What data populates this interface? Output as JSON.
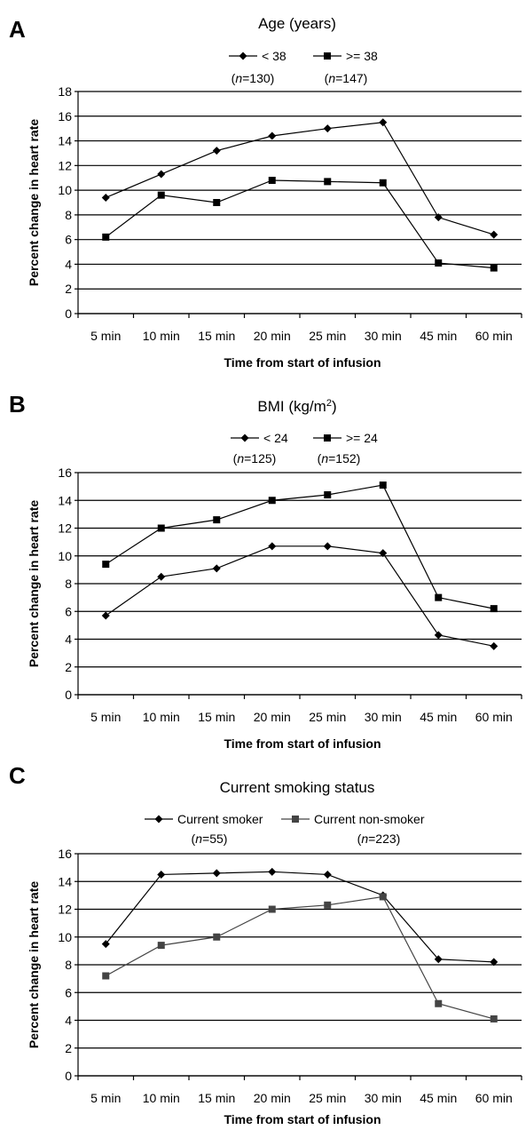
{
  "chart_data": [
    {
      "type": "line",
      "panel": "A",
      "title": "Age (years)",
      "title_sup": "",
      "title_end": "",
      "xlabel": "Time from start of infusion",
      "ylabel": "Percent change in heart rate",
      "categories": [
        "5 min",
        "10 min",
        "15 min",
        "20 min",
        "25 min",
        "30 min",
        "45 min",
        "60 min"
      ],
      "ylim": [
        0,
        18
      ],
      "yticks": [
        "0",
        "2",
        "4",
        "6",
        "8",
        "10",
        "12",
        "14",
        "16",
        "18"
      ],
      "grid": true,
      "legend_position": "top",
      "series": [
        {
          "name": "< 38",
          "n_prefix": "(",
          "n_sym": "n",
          "n_suffix": "=130)",
          "marker": "diamond",
          "color": "#000000",
          "values": [
            9.4,
            11.3,
            13.2,
            14.4,
            15.0,
            15.5,
            7.8,
            6.4
          ]
        },
        {
          "name": ">= 38",
          "n_prefix": "(",
          "n_sym": "n",
          "n_suffix": "=147)",
          "marker": "square",
          "color": "#000000",
          "values": [
            6.2,
            9.6,
            9.0,
            10.8,
            10.7,
            10.6,
            4.1,
            3.7
          ]
        }
      ]
    },
    {
      "type": "line",
      "panel": "B",
      "title": "BMI (kg/m",
      "title_sup": "2",
      "title_end": ")",
      "xlabel": "Time from start of infusion",
      "ylabel": "Percent change in heart rate",
      "categories": [
        "5 min",
        "10 min",
        "15 min",
        "20 min",
        "25 min",
        "30 min",
        "45 min",
        "60 min"
      ],
      "ylim": [
        0,
        16
      ],
      "yticks": [
        "0",
        "2",
        "4",
        "6",
        "8",
        "10",
        "12",
        "14",
        "16"
      ],
      "grid": true,
      "legend_position": "top",
      "series": [
        {
          "name": "< 24",
          "n_prefix": "(",
          "n_sym": "n",
          "n_suffix": "=125)",
          "marker": "diamond",
          "color": "#000000",
          "values": [
            5.7,
            8.5,
            9.1,
            10.7,
            10.7,
            10.2,
            4.3,
            3.5
          ]
        },
        {
          "name": ">= 24",
          "n_prefix": "(",
          "n_sym": "n",
          "n_suffix": "=152)",
          "marker": "square",
          "color": "#000000",
          "values": [
            9.4,
            12.0,
            12.6,
            14.0,
            14.4,
            15.1,
            7.0,
            6.2
          ]
        }
      ]
    },
    {
      "type": "line",
      "panel": "C",
      "title": "Current smoking status",
      "title_sup": "",
      "title_end": "",
      "xlabel": "Time from start of infusion",
      "ylabel": "Percent change in heart rate",
      "categories": [
        "5 min",
        "10 min",
        "15 min",
        "20 min",
        "25 min",
        "30 min",
        "45 min",
        "60 min"
      ],
      "ylim": [
        0,
        16
      ],
      "yticks": [
        "0",
        "2",
        "4",
        "6",
        "8",
        "10",
        "12",
        "14",
        "16"
      ],
      "grid": true,
      "legend_position": "top",
      "series": [
        {
          "name": "Current smoker",
          "n_prefix": "(",
          "n_sym": "n",
          "n_suffix": "=55)",
          "marker": "diamond",
          "color": "#000000",
          "values": [
            9.5,
            14.5,
            14.6,
            14.7,
            14.5,
            13.0,
            8.4,
            8.2
          ]
        },
        {
          "name": "Current non-smoker",
          "n_prefix": "(",
          "n_sym": "n",
          "n_suffix": "=223)",
          "marker": "square",
          "color": "#444444",
          "values": [
            7.2,
            9.4,
            10.0,
            12.0,
            12.3,
            12.9,
            5.2,
            4.1
          ]
        }
      ]
    }
  ]
}
